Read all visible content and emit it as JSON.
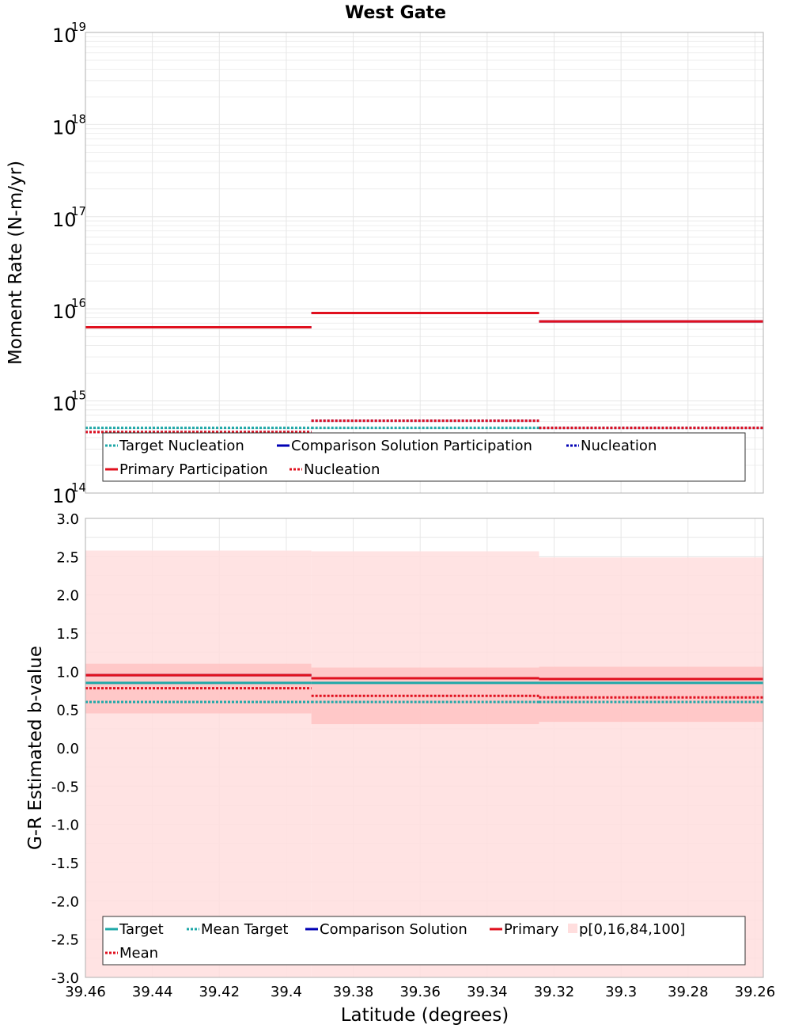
{
  "title": "West Gate",
  "colors": {
    "target": "#1fa8a8",
    "comparison": "#0000b4",
    "primary": "#e0101e",
    "band_outer": "#ffdede",
    "band_inner": "#ffc4c4",
    "grid": "#e6e6e6",
    "frame": "#b0b0b0"
  },
  "chart_data": [
    {
      "type": "line",
      "name": "moment-rate",
      "ylabel": "Moment Rate (N-m/yr)",
      "xlabel": "",
      "y_scale": "log",
      "ylim": [
        100000000000000.0,
        1e+19
      ],
      "xlim": [
        39.46,
        39.2575
      ],
      "x_reversed": true,
      "grid": true,
      "yticks": [
        {
          "base": "10",
          "exp": "14"
        },
        {
          "base": "10",
          "exp": "15"
        },
        {
          "base": "10",
          "exp": "16"
        },
        {
          "base": "10",
          "exp": "17"
        },
        {
          "base": "10",
          "exp": "18"
        },
        {
          "base": "10",
          "exp": "19"
        }
      ],
      "segments": [
        39.46,
        39.3925,
        39.3245,
        39.2575
      ],
      "series": [
        {
          "label": "Target Nucleation",
          "color_key": "target",
          "style": "dotted",
          "values": [
            510000000000000.0,
            510000000000000.0,
            510000000000000.0
          ]
        },
        {
          "label": "Comparison Solution Participation",
          "color_key": "comparison",
          "style": "solid",
          "values": [
            6300000000000000.0,
            9000000000000000.0,
            7300000000000000.0
          ]
        },
        {
          "label": "Nucleation",
          "color_key": "comparison",
          "style": "dotted",
          "values": [
            460000000000000.0,
            610000000000000.0,
            510000000000000.0
          ]
        },
        {
          "label": "Primary Participation",
          "color_key": "primary",
          "style": "solid",
          "values": [
            6300000000000000.0,
            9000000000000000.0,
            7300000000000000.0
          ]
        },
        {
          "label": "Nucleation",
          "color_key": "primary",
          "style": "dotted",
          "values": [
            460000000000000.0,
            610000000000000.0,
            510000000000000.0
          ]
        }
      ],
      "legend": {
        "placement": "lower-left",
        "rows": [
          [
            {
              "label": "Target Nucleation",
              "color_key": "target",
              "style": "dotted"
            },
            {
              "label": "Comparison Solution Participation",
              "color_key": "comparison",
              "style": "solid"
            },
            {
              "label": "Nucleation",
              "color_key": "comparison",
              "style": "dotted"
            }
          ],
          [
            {
              "label": "Primary Participation",
              "color_key": "primary",
              "style": "solid"
            },
            {
              "label": "Nucleation",
              "color_key": "primary",
              "style": "dotted"
            }
          ]
        ]
      }
    },
    {
      "type": "line",
      "name": "b-value",
      "ylabel": "G-R Estimated b-value",
      "xlabel": "Latitude (degrees)",
      "ylim": [
        -3.0,
        3.0
      ],
      "xlim": [
        39.46,
        39.2575
      ],
      "x_reversed": true,
      "grid": true,
      "yticks": [
        "-3.0",
        "-2.5",
        "-2.0",
        "-1.5",
        "-1.0",
        "-0.5",
        "0.0",
        "0.5",
        "1.0",
        "1.5",
        "2.0",
        "2.5",
        "3.0"
      ],
      "xticks": [
        "39.46",
        "39.44",
        "39.42",
        "39.4",
        "39.38",
        "39.36",
        "39.34",
        "39.32",
        "39.3",
        "39.28",
        "39.26"
      ],
      "segments": [
        39.46,
        39.3925,
        39.3245,
        39.2575
      ],
      "band_outer": {
        "lower": [
          -3.0,
          -3.0,
          -3.0
        ],
        "upper": [
          2.58,
          2.57,
          2.49
        ]
      },
      "band_inner": {
        "lower": [
          0.45,
          0.31,
          0.34
        ],
        "upper": [
          1.1,
          1.05,
          1.06
        ]
      },
      "series": [
        {
          "label": "Target",
          "color_key": "target",
          "style": "solid",
          "values": [
            0.85,
            0.85,
            0.85
          ]
        },
        {
          "label": "Mean Target",
          "color_key": "target",
          "style": "dotted",
          "values": [
            0.6,
            0.6,
            0.6
          ]
        },
        {
          "label": "Comparison Solution",
          "color_key": "comparison",
          "style": "solid",
          "values": [
            0.95,
            0.91,
            0.9
          ]
        },
        {
          "label": "Primary",
          "color_key": "primary",
          "style": "solid",
          "values": [
            0.95,
            0.91,
            0.9
          ]
        },
        {
          "label": "Mean",
          "color_key": "primary",
          "style": "dotted",
          "values": [
            0.78,
            0.68,
            0.66
          ]
        }
      ],
      "legend": {
        "placement": "lower-left",
        "rows": [
          [
            {
              "label": "Target",
              "color_key": "target",
              "style": "solid"
            },
            {
              "label": "Mean Target",
              "color_key": "target",
              "style": "dotted"
            },
            {
              "label": "Comparison Solution",
              "color_key": "comparison",
              "style": "solid"
            },
            {
              "label": "Primary",
              "color_key": "primary",
              "style": "solid"
            },
            {
              "label": "p[0,16,84,100]",
              "color_key": "band_outer",
              "style": "swatch"
            }
          ],
          [
            {
              "label": "Mean",
              "color_key": "primary",
              "style": "dotted"
            }
          ]
        ]
      }
    }
  ]
}
